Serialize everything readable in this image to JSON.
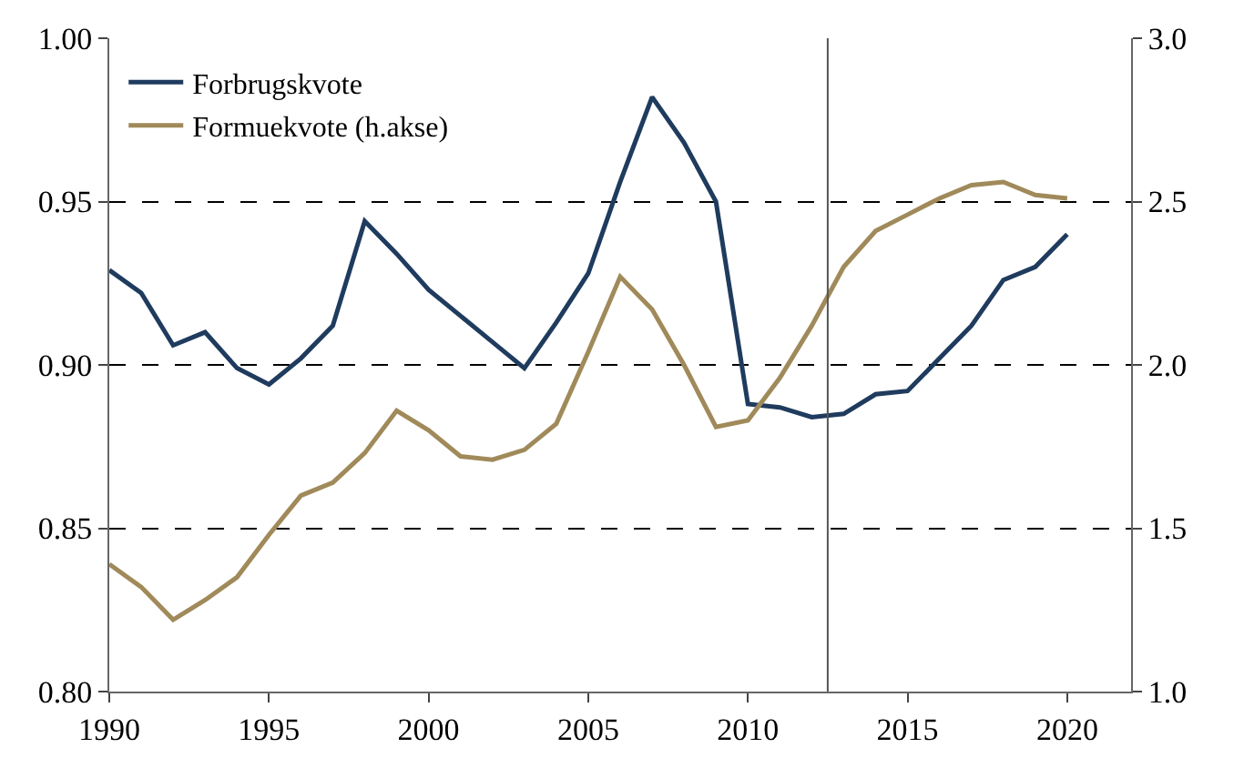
{
  "chart_data": {
    "type": "line",
    "x": [
      1990,
      1991,
      1992,
      1993,
      1994,
      1995,
      1996,
      1997,
      1998,
      1999,
      2000,
      2001,
      2002,
      2003,
      2004,
      2005,
      2006,
      2007,
      2008,
      2009,
      2010,
      2011,
      2012,
      2013,
      2014,
      2015,
      2016,
      2017,
      2018,
      2019,
      2020
    ],
    "series": [
      {
        "name": "Forbrugskvote",
        "color": "#1f3b5e",
        "values": [
          0.929,
          0.922,
          0.906,
          0.91,
          0.899,
          0.894,
          0.902,
          0.912,
          0.944,
          0.934,
          0.923,
          0.915,
          0.907,
          0.899,
          0.913,
          0.928,
          0.956,
          0.982,
          0.968,
          0.95,
          0.888,
          0.887,
          0.884,
          0.885,
          0.891,
          0.892,
          0.902,
          0.912,
          0.926,
          0.93,
          0.94
        ]
      },
      {
        "name": "Formuekvote (h.akse)",
        "color": "#a08a5a",
        "axis": "y2",
        "values": [
          1.39,
          1.32,
          1.22,
          1.28,
          1.35,
          1.48,
          1.6,
          1.64,
          1.73,
          1.86,
          1.8,
          1.72,
          1.71,
          1.74,
          1.82,
          2.04,
          2.27,
          2.17,
          2.0,
          1.81,
          1.83,
          1.96,
          2.12,
          2.3,
          2.41,
          2.46,
          2.51,
          2.55,
          2.56,
          2.52,
          2.51
        ]
      }
    ],
    "xlim": [
      1990,
      2022
    ],
    "xticks": [
      1990,
      1995,
      2000,
      2005,
      2010,
      2015,
      2020
    ],
    "ylim": [
      0.8,
      1.0
    ],
    "yticks": [
      {
        "value": 0.8,
        "label": "0.80"
      },
      {
        "value": 0.85,
        "label": "0.85"
      },
      {
        "value": 0.9,
        "label": "0.90"
      },
      {
        "value": 0.95,
        "label": "0.95"
      },
      {
        "value": 1.0,
        "label": "1.00"
      }
    ],
    "y2lim": [
      1.0,
      3.0
    ],
    "y2ticks": [
      {
        "value": 1.0,
        "label": "1.0"
      },
      {
        "value": 1.5,
        "label": "1.5"
      },
      {
        "value": 2.0,
        "label": "2.0"
      },
      {
        "value": 2.5,
        "label": "2.5"
      },
      {
        "value": 3.0,
        "label": "3.0"
      }
    ],
    "ref_lines": [
      {
        "axis": "x",
        "value": 2012.5,
        "color": "#555555"
      }
    ],
    "grid": "y",
    "legend": "top left",
    "marker": "none",
    "line_style": "solid"
  }
}
